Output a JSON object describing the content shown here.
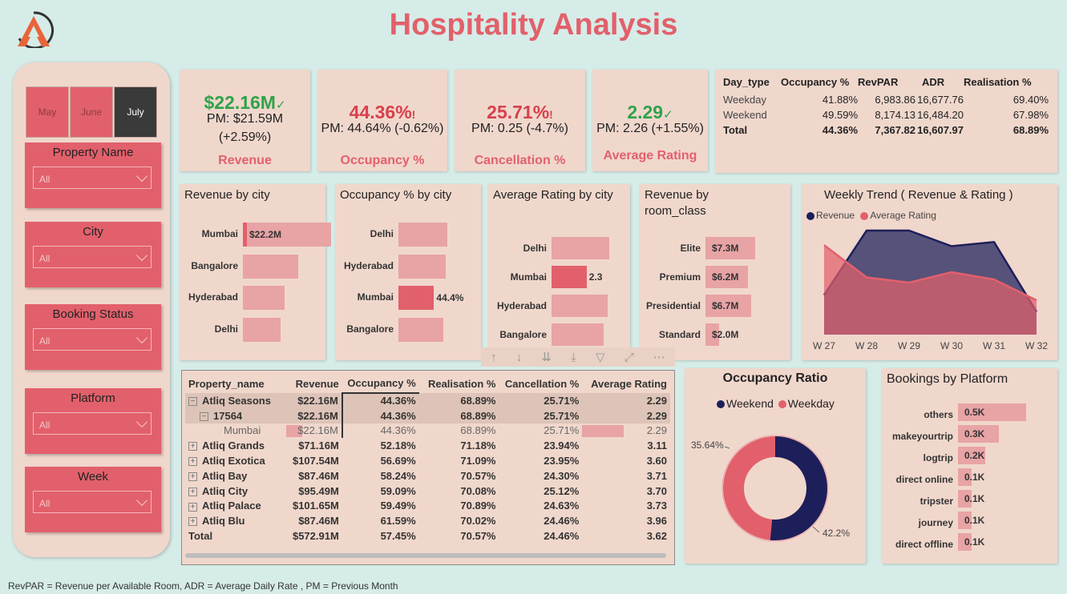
{
  "title": "Hospitality Analysis",
  "footer": "RevPAR = Revenue per Available Room, ADR = Average Daily Rate , PM = Previous Month",
  "colors": {
    "accent": "#e2606b",
    "navy": "#1c1f5a",
    "green": "#2fa34a"
  },
  "months": [
    {
      "label": "May",
      "selected": false
    },
    {
      "label": "June",
      "selected": false
    },
    {
      "label": "July",
      "selected": true
    }
  ],
  "slicers": [
    {
      "label": "Property Name",
      "value": "All"
    },
    {
      "label": "City",
      "value": "All"
    },
    {
      "label": "Booking Status",
      "value": "All"
    },
    {
      "label": "Platform",
      "value": "All"
    },
    {
      "label": "Week",
      "value": "All"
    }
  ],
  "kpis": [
    {
      "value": "$22.16M",
      "status": "✓",
      "pm": "PM: $21.59M",
      "change": "(+2.59%)",
      "name": "Revenue"
    },
    {
      "value": "44.36%",
      "status": "!",
      "pm": "PM: 44.64% (-0.62%)",
      "name": "Occupancy %"
    },
    {
      "value": "25.71%",
      "status": "!",
      "pm": "PM: 0.25 (-4.7%)",
      "name": "Cancellation %"
    },
    {
      "value": "2.29",
      "status": "✓",
      "pm": "PM: 2.26 (+1.55%)",
      "name": "Average Rating"
    }
  ],
  "summary_table": {
    "headers": [
      "Day_type",
      "Occupancy %",
      "RevPAR",
      "ADR",
      "Realisation %"
    ],
    "rows": [
      [
        "Weekday",
        "41.88%",
        "6,983.86",
        "16,677.76",
        "69.40%"
      ],
      [
        "Weekend",
        "49.59%",
        "8,174.13",
        "16,484.20",
        "67.98%"
      ]
    ],
    "total": [
      "Total",
      "44.36%",
      "7,367.82",
      "16,607.97",
      "68.89%"
    ]
  },
  "revenue_by_city": {
    "title": "Revenue by city",
    "categories": [
      "Mumbai",
      "Bangalore",
      "Hyderabad",
      "Delhi"
    ],
    "values": [
      22.2,
      14.0,
      10.5,
      9.5
    ],
    "data_label": "$22.2M"
  },
  "occupancy_by_city": {
    "title": "Occupancy % by city",
    "categories": [
      "Delhi",
      "Hyderabad",
      "Mumbai",
      "Bangalore"
    ],
    "values": [
      61,
      59,
      44.4,
      56
    ],
    "data_label": "44.4%"
  },
  "rating_by_city": {
    "title": "Average Rating by city",
    "categories": [
      "Delhi",
      "Mumbai",
      "Hyderabad",
      "Bangalore"
    ],
    "values": [
      3.78,
      2.3,
      3.66,
      3.41
    ],
    "data_label": "2.3"
  },
  "revenue_by_room": {
    "title": "Revenue by room_class",
    "categories": [
      "Elite",
      "Premium",
      "Presidential",
      "Standard"
    ],
    "values": [
      7.3,
      6.2,
      6.7,
      2.0
    ],
    "labels": [
      "$7.3M",
      "$6.2M",
      "$6.7M",
      "$2.0M"
    ]
  },
  "chart_data": {
    "type": "area",
    "title": "Weekly Trend ( Revenue & Rating )",
    "x": [
      "W 27",
      "W 28",
      "W 29",
      "W 30",
      "W 31",
      "W 32"
    ],
    "series": [
      {
        "name": "Revenue",
        "values": [
          0.38,
          1.0,
          1.0,
          0.85,
          0.89,
          0.22
        ]
      },
      {
        "name": "Average Rating",
        "values": [
          0.86,
          0.55,
          0.5,
          0.6,
          0.53,
          0.33
        ]
      }
    ],
    "legend": "top-left"
  },
  "matrix": {
    "headers": [
      "Property_name",
      "Revenue",
      "Occupancy %",
      "Realisation %",
      "Cancellation %",
      "Average Rating"
    ],
    "rows": [
      {
        "cells": [
          "Atliq Seasons",
          "$22.16M",
          "44.36%",
          "68.89%",
          "25.71%",
          "2.29"
        ],
        "expand": "−",
        "level": 0,
        "sel": true
      },
      {
        "cells": [
          "17564",
          "$22.16M",
          "44.36%",
          "68.89%",
          "25.71%",
          "2.29"
        ],
        "expand": "−",
        "level": 1,
        "sel": true
      },
      {
        "cells": [
          "Mumbai",
          "$22.16M",
          "44.36%",
          "68.89%",
          "25.71%",
          "2.29"
        ],
        "expand": "",
        "level": 2,
        "faded": true
      },
      {
        "cells": [
          "Atliq Grands",
          "$71.16M",
          "52.18%",
          "71.18%",
          "23.94%",
          "3.11"
        ],
        "expand": "+",
        "level": 0
      },
      {
        "cells": [
          "Atliq Exotica",
          "$107.54M",
          "56.69%",
          "71.09%",
          "23.95%",
          "3.60"
        ],
        "expand": "+",
        "level": 0
      },
      {
        "cells": [
          "Atliq Bay",
          "$87.46M",
          "58.24%",
          "70.57%",
          "24.30%",
          "3.71"
        ],
        "expand": "+",
        "level": 0
      },
      {
        "cells": [
          "Atliq City",
          "$95.49M",
          "59.09%",
          "70.08%",
          "25.12%",
          "3.70"
        ],
        "expand": "+",
        "level": 0
      },
      {
        "cells": [
          "Atliq Palace",
          "$101.65M",
          "59.49%",
          "70.89%",
          "24.63%",
          "3.73"
        ],
        "expand": "+",
        "level": 0
      },
      {
        "cells": [
          "Atliq Blu",
          "$87.46M",
          "61.59%",
          "70.02%",
          "24.46%",
          "3.96"
        ],
        "expand": "+",
        "level": 0
      },
      {
        "cells": [
          "Total",
          "$572.91M",
          "57.45%",
          "70.57%",
          "24.46%",
          "3.62"
        ],
        "expand": "",
        "level": 0,
        "total": true
      }
    ]
  },
  "occupancy_ratio": {
    "title": "Occupancy Ratio",
    "legend": [
      "Weekend",
      "Weekday"
    ],
    "weekend_pct": "42.2%",
    "weekday_pct": "35.64%",
    "weekend_value": 42.2,
    "weekday_value": 35.64
  },
  "bookings_by_platform": {
    "title": "Bookings by Platform",
    "categories": [
      "others",
      "makeyourtrip",
      "logtrip",
      "direct online",
      "tripster",
      "journey",
      "direct offline"
    ],
    "values": [
      0.5,
      0.3,
      0.2,
      0.1,
      0.1,
      0.1,
      0.1
    ],
    "labels": [
      "0.5K",
      "0.3K",
      "0.2K",
      "0.1K",
      "0.1K",
      "0.1K",
      "0.1K"
    ]
  }
}
